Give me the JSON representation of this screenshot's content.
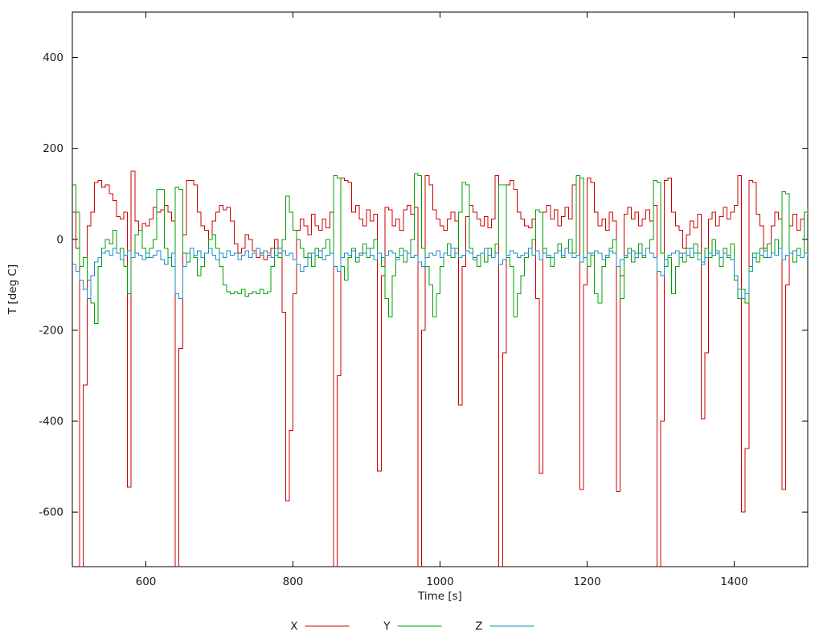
{
  "chart_data": {
    "type": "line",
    "line_style": "steps",
    "title": "",
    "xlabel": "Time [s]",
    "ylabel": "T [deg C]",
    "xlim": [
      500,
      1500
    ],
    "ylim": [
      -720,
      500
    ],
    "xticks": [
      600,
      800,
      1000,
      1200,
      1400
    ],
    "yticks": [
      -600,
      -400,
      -200,
      0,
      200,
      400
    ],
    "grid": false,
    "legend_position": "bottom-center",
    "border_color": "#000000",
    "x_start": 500,
    "x_step": 5,
    "n_points": 201,
    "series": [
      {
        "name": "X",
        "color": "#cc0000",
        "values": [
          60,
          -20,
          -720,
          -320,
          30,
          60,
          125,
          130,
          115,
          120,
          100,
          85,
          50,
          45,
          60,
          -545,
          150,
          40,
          20,
          35,
          30,
          45,
          70,
          60,
          65,
          75,
          60,
          40,
          -730,
          -240,
          10,
          130,
          130,
          120,
          60,
          30,
          20,
          0,
          40,
          60,
          75,
          65,
          70,
          40,
          -10,
          -30,
          -20,
          10,
          0,
          -25,
          -40,
          -30,
          -45,
          -35,
          -20,
          0,
          -30,
          -160,
          -575,
          -420,
          -120,
          20,
          45,
          30,
          10,
          55,
          30,
          20,
          45,
          25,
          60,
          -735,
          -300,
          135,
          130,
          125,
          60,
          75,
          45,
          30,
          65,
          40,
          55,
          -510,
          -80,
          70,
          65,
          30,
          45,
          20,
          65,
          75,
          55,
          70,
          -725,
          -200,
          140,
          120,
          65,
          45,
          30,
          20,
          45,
          60,
          40,
          -365,
          -60,
          50,
          75,
          60,
          45,
          30,
          50,
          25,
          45,
          140,
          -730,
          -250,
          120,
          130,
          110,
          60,
          45,
          30,
          25,
          45,
          -130,
          -515,
          60,
          75,
          45,
          65,
          30,
          50,
          70,
          45,
          120,
          140,
          -550,
          -100,
          135,
          125,
          60,
          30,
          45,
          20,
          60,
          40,
          -555,
          -80,
          55,
          70,
          45,
          60,
          30,
          45,
          65,
          40,
          75,
          -735,
          -400,
          130,
          135,
          60,
          30,
          20,
          -20,
          10,
          40,
          25,
          55,
          -395,
          -250,
          45,
          60,
          30,
          50,
          70,
          45,
          60,
          75,
          140,
          -600,
          -460,
          130,
          125,
          55,
          30,
          -20,
          -40,
          30,
          60,
          45,
          -550,
          -100,
          30,
          55,
          20,
          45,
          60,
          70
        ]
      },
      {
        "name": "Y",
        "color": "#00a000",
        "values": [
          120,
          60,
          -60,
          -40,
          -90,
          -140,
          -185,
          -60,
          -20,
          0,
          -10,
          20,
          -30,
          -20,
          -60,
          -120,
          -40,
          10,
          20,
          -20,
          -40,
          -20,
          0,
          110,
          110,
          -20,
          -40,
          -60,
          115,
          110,
          -30,
          -50,
          -20,
          -40,
          -80,
          -60,
          -30,
          0,
          10,
          -20,
          -60,
          -100,
          -115,
          -120,
          -115,
          -120,
          -110,
          -125,
          -120,
          -115,
          -120,
          -110,
          -120,
          -115,
          -60,
          -20,
          -40,
          0,
          95,
          60,
          20,
          0,
          -20,
          -40,
          -30,
          -60,
          -20,
          -40,
          -20,
          0,
          -30,
          140,
          135,
          -60,
          -90,
          -40,
          -20,
          -50,
          -30,
          -10,
          -40,
          -20,
          0,
          -30,
          -60,
          -130,
          -170,
          -80,
          -40,
          -20,
          -50,
          -30,
          0,
          145,
          140,
          -20,
          -60,
          -100,
          -170,
          -120,
          -60,
          -30,
          -10,
          -40,
          -20,
          60,
          125,
          120,
          -20,
          -40,
          -60,
          -30,
          -50,
          -20,
          -40,
          -10,
          120,
          120,
          -40,
          -60,
          -170,
          -120,
          -80,
          -40,
          -20,
          0,
          65,
          60,
          -20,
          -40,
          -60,
          -30,
          -10,
          -40,
          -20,
          0,
          -30,
          140,
          135,
          -40,
          -60,
          -30,
          -120,
          -140,
          -60,
          -40,
          -20,
          0,
          -60,
          -130,
          -40,
          -20,
          -50,
          -30,
          -10,
          -40,
          -20,
          0,
          130,
          125,
          -30,
          -60,
          -40,
          -120,
          -60,
          -30,
          -50,
          -20,
          -40,
          -10,
          -30,
          -50,
          -20,
          -40,
          0,
          -30,
          -60,
          -20,
          -40,
          -10,
          -90,
          -130,
          -110,
          -140,
          -60,
          -30,
          -50,
          -20,
          -40,
          -10,
          -30,
          0,
          -20,
          105,
          100,
          -30,
          -50,
          -20,
          -40,
          60,
          55
        ]
      },
      {
        "name": "Z",
        "color": "#1e8bc3",
        "values": [
          -55,
          -70,
          -90,
          -110,
          -130,
          -80,
          -50,
          -40,
          -30,
          -25,
          -35,
          -20,
          -30,
          -45,
          -35,
          -25,
          -40,
          -30,
          -35,
          -45,
          -30,
          -40,
          -35,
          -25,
          -45,
          -55,
          -40,
          -30,
          -120,
          -130,
          -60,
          -30,
          -20,
          -35,
          -25,
          -40,
          -30,
          -20,
          -35,
          -45,
          -30,
          -40,
          -25,
          -35,
          -30,
          -45,
          -35,
          -25,
          -40,
          -30,
          -20,
          -35,
          -25,
          -30,
          -40,
          -35,
          -20,
          -25,
          -35,
          -30,
          -45,
          -55,
          -70,
          -60,
          -40,
          -30,
          -35,
          -25,
          -45,
          -35,
          -30,
          -60,
          -70,
          -40,
          -30,
          -35,
          -25,
          -40,
          -35,
          -30,
          -20,
          -35,
          -45,
          -30,
          -40,
          -35,
          -25,
          -30,
          -45,
          -35,
          -25,
          -30,
          -40,
          -35,
          -50,
          -60,
          -40,
          -30,
          -35,
          -25,
          -40,
          -30,
          -35,
          -20,
          -30,
          -40,
          -35,
          -25,
          -30,
          -45,
          -35,
          -30,
          -20,
          -35,
          -40,
          -30,
          -55,
          -45,
          -35,
          -25,
          -30,
          -40,
          -35,
          -30,
          -20,
          -35,
          -25,
          -45,
          -30,
          -35,
          -40,
          -30,
          -25,
          -35,
          -20,
          -30,
          -40,
          -35,
          -50,
          -40,
          -30,
          -35,
          -25,
          -30,
          -45,
          -35,
          -25,
          -30,
          -60,
          -45,
          -35,
          -30,
          -25,
          -40,
          -30,
          -35,
          -20,
          -30,
          -40,
          -70,
          -80,
          -45,
          -35,
          -30,
          -25,
          -40,
          -30,
          -35,
          -20,
          -30,
          -45,
          -55,
          -40,
          -30,
          -35,
          -25,
          -40,
          -30,
          -35,
          -45,
          -80,
          -110,
          -130,
          -120,
          -70,
          -40,
          -30,
          -35,
          -25,
          -40,
          -30,
          -35,
          -20,
          -45,
          -35,
          -30,
          -25,
          -35,
          -40,
          -30,
          -35
        ]
      }
    ]
  }
}
